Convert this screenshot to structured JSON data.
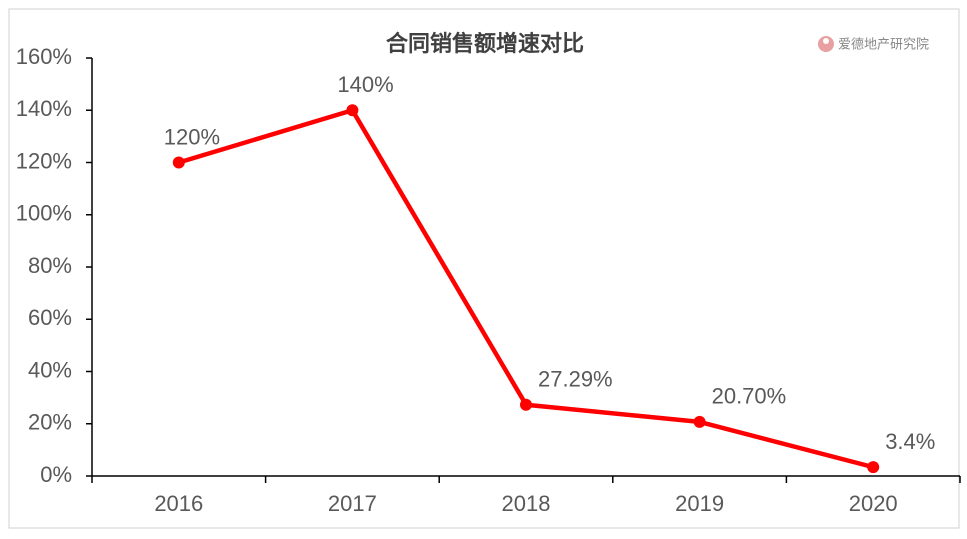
{
  "chart_data": {
    "type": "line",
    "title": "合同销售额增速对比",
    "watermark": "爱德地产研究院",
    "categories": [
      "2016",
      "2017",
      "2018",
      "2019",
      "2020"
    ],
    "values": [
      120,
      140,
      27.29,
      20.7,
      3.4
    ],
    "value_labels": [
      "120%",
      "140%",
      "27.29%",
      "20.70%",
      "3.4%"
    ],
    "color": "#ff0000",
    "ylim": [
      0,
      160
    ],
    "yticks": [
      {
        "value": 0,
        "label": "0%"
      },
      {
        "value": 20,
        "label": "20%"
      },
      {
        "value": 40,
        "label": "40%"
      },
      {
        "value": 60,
        "label": "60%"
      },
      {
        "value": 80,
        "label": "80%"
      },
      {
        "value": 100,
        "label": "100%"
      },
      {
        "value": 120,
        "label": "120%"
      },
      {
        "value": 140,
        "label": "140%"
      },
      {
        "value": 160,
        "label": "160%"
      }
    ],
    "grid": false
  }
}
